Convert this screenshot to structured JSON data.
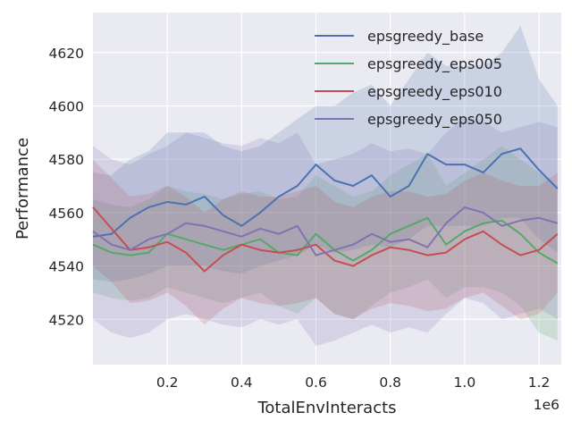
{
  "chart_data": {
    "type": "line",
    "xlabel": "TotalEnvInteracts",
    "ylabel": "Performance",
    "x_offset_label": "1e6",
    "xlim": [
      0,
      1.26
    ],
    "ylim": [
      4503,
      4635
    ],
    "x_ticks": [
      0.2,
      0.4,
      0.6,
      0.8,
      1.0,
      1.2
    ],
    "x_tick_labels": [
      "0.2",
      "0.4",
      "0.6",
      "0.8",
      "1.0",
      "1.2"
    ],
    "y_ticks": [
      4520,
      4540,
      4560,
      4580,
      4600,
      4620
    ],
    "y_tick_labels": [
      "4520",
      "4540",
      "4560",
      "4580",
      "4600",
      "4620"
    ],
    "grid": true,
    "legend_position": "top-right",
    "x": [
      0.0,
      0.05,
      0.1,
      0.15,
      0.2,
      0.25,
      0.3,
      0.35,
      0.4,
      0.45,
      0.5,
      0.55,
      0.6,
      0.65,
      0.7,
      0.75,
      0.8,
      0.85,
      0.9,
      0.95,
      1.0,
      1.05,
      1.1,
      1.15,
      1.2,
      1.25
    ],
    "series": [
      {
        "name": "epsgreedy_base",
        "color": "#4c72b0",
        "values": [
          4551,
          4552,
          4558,
          4562,
          4564,
          4563,
          4566,
          4559,
          4555,
          4560,
          4566,
          4570,
          4578,
          4572,
          4570,
          4574,
          4566,
          4570,
          4582,
          4578,
          4578,
          4575,
          4582,
          4584,
          4576,
          4569
        ],
        "lower": [
          4535,
          4534,
          4535,
          4537,
          4540,
          4540,
          4540,
          4538,
          4537,
          4540,
          4542,
          4544,
          4548,
          4545,
          4546,
          4548,
          4547,
          4550,
          4555,
          4555,
          4555,
          4555,
          4558,
          4558,
          4550,
          4545
        ],
        "upper": [
          4575,
          4574,
          4580,
          4583,
          4590,
          4590,
          4590,
          4585,
          4583,
          4585,
          4590,
          4595,
          4600,
          4600,
          4605,
          4608,
          4600,
          4610,
          4620,
          4615,
          4615,
          4615,
          4620,
          4630,
          4610,
          4600
        ]
      },
      {
        "name": "epsgreedy_eps005",
        "color": "#55a868",
        "values": [
          4548,
          4545,
          4544,
          4545,
          4552,
          4550,
          4548,
          4546,
          4548,
          4550,
          4545,
          4544,
          4552,
          4546,
          4542,
          4546,
          4552,
          4555,
          4558,
          4548,
          4553,
          4556,
          4557,
          4552,
          4545,
          4541
        ],
        "lower": [
          4530,
          4528,
          4527,
          4528,
          4532,
          4530,
          4528,
          4526,
          4528,
          4530,
          4525,
          4522,
          4528,
          4522,
          4520,
          4525,
          4530,
          4532,
          4535,
          4528,
          4532,
          4532,
          4530,
          4525,
          4515,
          4512
        ],
        "upper": [
          4565,
          4563,
          4562,
          4565,
          4570,
          4568,
          4567,
          4565,
          4567,
          4568,
          4565,
          4566,
          4574,
          4570,
          4566,
          4568,
          4574,
          4578,
          4582,
          4570,
          4575,
          4580,
          4585,
          4580,
          4575,
          4570
        ]
      },
      {
        "name": "epsgreedy_eps010",
        "color": "#c44e52",
        "values": [
          4562,
          4554,
          4546,
          4547,
          4549,
          4545,
          4538,
          4544,
          4548,
          4546,
          4545,
          4546,
          4548,
          4542,
          4540,
          4544,
          4547,
          4546,
          4544,
          4545,
          4550,
          4553,
          4548,
          4544,
          4546,
          4552
        ],
        "lower": [
          4540,
          4534,
          4526,
          4527,
          4530,
          4525,
          4518,
          4524,
          4528,
          4526,
          4525,
          4526,
          4528,
          4522,
          4520,
          4524,
          4526,
          4525,
          4523,
          4524,
          4528,
          4530,
          4525,
          4520,
          4522,
          4530
        ],
        "upper": [
          4580,
          4573,
          4566,
          4567,
          4570,
          4566,
          4560,
          4565,
          4568,
          4566,
          4566,
          4568,
          4570,
          4564,
          4562,
          4566,
          4568,
          4568,
          4566,
          4567,
          4572,
          4575,
          4572,
          4570,
          4570,
          4575
        ]
      },
      {
        "name": "epsgreedy_eps050",
        "color": "#8172b2",
        "values": [
          4553,
          4548,
          4546,
          4550,
          4552,
          4556,
          4555,
          4553,
          4551,
          4554,
          4552,
          4555,
          4544,
          4546,
          4548,
          4552,
          4549,
          4550,
          4547,
          4556,
          4562,
          4560,
          4555,
          4557,
          4558,
          4556
        ],
        "lower": [
          4520,
          4515,
          4513,
          4515,
          4520,
          4522,
          4520,
          4518,
          4517,
          4520,
          4518,
          4520,
          4510,
          4512,
          4515,
          4518,
          4515,
          4517,
          4515,
          4522,
          4528,
          4526,
          4520,
          4522,
          4524,
          4520
        ],
        "upper": [
          4585,
          4580,
          4578,
          4582,
          4585,
          4590,
          4588,
          4586,
          4585,
          4588,
          4586,
          4590,
          4578,
          4580,
          4582,
          4586,
          4583,
          4584,
          4582,
          4590,
          4596,
          4594,
          4590,
          4592,
          4594,
          4592
        ]
      }
    ]
  }
}
